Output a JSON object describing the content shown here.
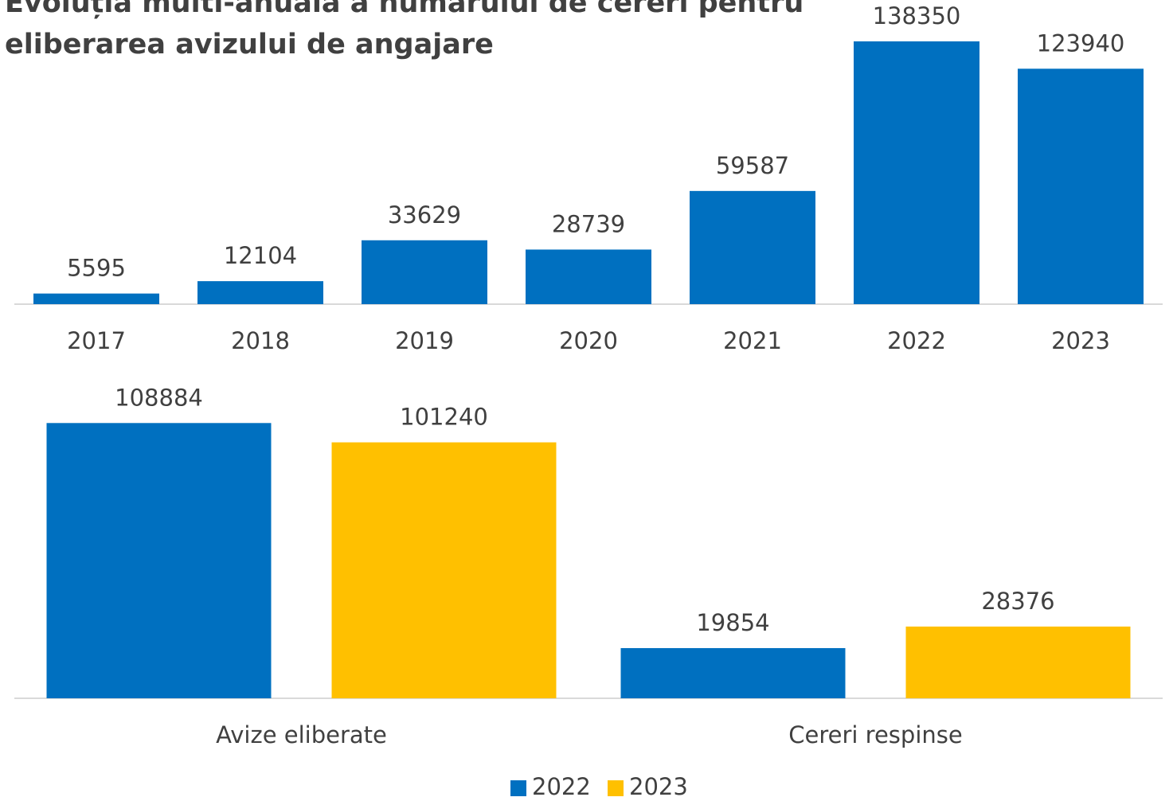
{
  "chart_data": [
    {
      "type": "bar",
      "title": "Evoluția multi-anuală a numărului de cereri pentru eliberarea avizului de angajare",
      "categories": [
        "2017",
        "2018",
        "2019",
        "2020",
        "2021",
        "2022",
        "2023"
      ],
      "values": [
        5595,
        12104,
        33629,
        28739,
        59587,
        138350,
        123940
      ],
      "color": "#0070c0",
      "ylim": [
        0,
        140000
      ]
    },
    {
      "type": "grouped_bar",
      "categories": [
        "Avize eliberate",
        "Cereri respinse"
      ],
      "series": [
        {
          "name": "2022",
          "color": "#0070c0",
          "values": [
            108884,
            19854
          ]
        },
        {
          "name": "2023",
          "color": "#ffc000",
          "values": [
            101240,
            28376
          ]
        }
      ],
      "ylim": [
        0,
        120000
      ],
      "legend": "bottom"
    }
  ]
}
